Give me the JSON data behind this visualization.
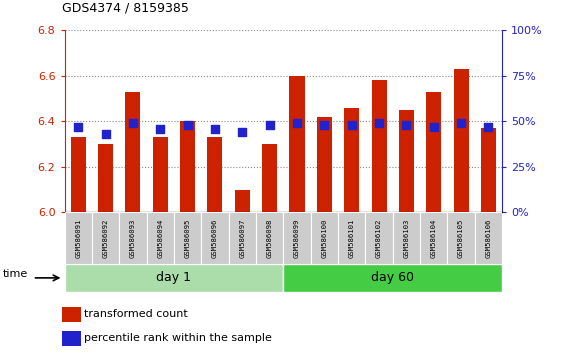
{
  "title": "GDS4374 / 8159385",
  "samples": [
    "GSM586091",
    "GSM586092",
    "GSM586093",
    "GSM586094",
    "GSM586095",
    "GSM586096",
    "GSM586097",
    "GSM586098",
    "GSM586099",
    "GSM586100",
    "GSM586101",
    "GSM586102",
    "GSM586103",
    "GSM586104",
    "GSM586105",
    "GSM586106"
  ],
  "transformed_counts": [
    6.33,
    6.3,
    6.53,
    6.33,
    6.4,
    6.33,
    6.1,
    6.3,
    6.6,
    6.42,
    6.46,
    6.58,
    6.45,
    6.53,
    6.63,
    6.37
  ],
  "percentile_ranks": [
    47,
    43,
    49,
    46,
    48,
    46,
    44,
    48,
    49,
    48,
    48,
    49,
    48,
    47,
    49,
    47
  ],
  "n_day1": 8,
  "n_day2": 8,
  "ylim_left": [
    6.0,
    6.8
  ],
  "ylim_right": [
    0,
    100
  ],
  "yticks_left": [
    6.0,
    6.2,
    6.4,
    6.6,
    6.8
  ],
  "yticks_right": [
    0,
    25,
    50,
    75,
    100
  ],
  "bar_color": "#cc2200",
  "dot_color": "#2222cc",
  "day1_bg": "#aaddaa",
  "day60_bg": "#44cc44",
  "label_bg": "#cccccc",
  "bar_width": 0.55,
  "dot_size": 28,
  "base_value": 6.0
}
